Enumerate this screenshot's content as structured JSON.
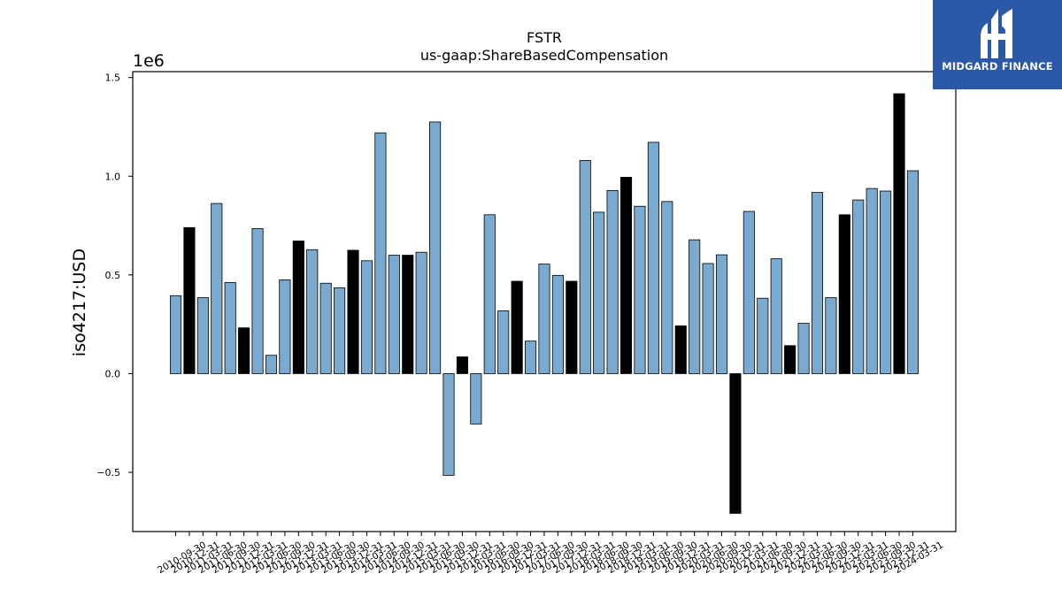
{
  "chart_data": {
    "type": "bar",
    "title": "FSTR",
    "subtitle": "us-gaap:ShareBasedCompensation",
    "ylabel": "iso4217:USD",
    "xlabel": "",
    "y_scale_label": "1e6",
    "ylim": [
      -0.8,
      1.53
    ],
    "yticks": [
      -0.5,
      0.0,
      0.5,
      1.0,
      1.5
    ],
    "ytick_labels": [
      "−0.5",
      "0.0",
      "0.5",
      "1.0",
      "1.5"
    ],
    "grid": false,
    "colors": {
      "q": "#7aaad0",
      "fy": "#000000"
    },
    "categories": [
      "2010-09-30",
      "2010-12-31",
      "2011-03-31",
      "2011-06-30",
      "2011-09-30",
      "2011-12-31",
      "2012-03-31",
      "2012-06-30",
      "2012-09-30",
      "2012-12-31",
      "2013-03-31",
      "2013-06-30",
      "2013-09-30",
      "2013-12-31",
      "2014-03-31",
      "2014-06-30",
      "2014-09-30",
      "2014-12-31",
      "2015-03-31",
      "2015-06-30",
      "2015-09-30",
      "2015-12-31",
      "2016-03-31",
      "2016-06-30",
      "2016-09-30",
      "2016-12-31",
      "2017-03-31",
      "2017-06-30",
      "2017-09-30",
      "2017-12-31",
      "2018-03-31",
      "2018-06-30",
      "2018-09-30",
      "2018-12-31",
      "2019-03-31",
      "2019-06-30",
      "2019-09-30",
      "2019-12-31",
      "2020-03-31",
      "2020-06-30",
      "2020-09-30",
      "2020-12-31",
      "2021-03-31",
      "2021-06-30",
      "2021-09-30",
      "2021-12-31",
      "2022-03-31",
      "2022-06-30",
      "2022-09-30",
      "2022-12-31",
      "2023-03-31",
      "2023-06-30",
      "2023-09-30",
      "2023-12-31",
      "2024-03-31"
    ],
    "values": [
      0.395,
      0.74,
      0.385,
      0.862,
      0.462,
      0.232,
      0.735,
      0.093,
      0.475,
      0.672,
      0.628,
      0.458,
      0.435,
      0.625,
      0.572,
      1.22,
      0.6,
      0.6,
      0.615,
      1.275,
      -0.515,
      0.085,
      -0.255,
      0.805,
      0.318,
      0.468,
      0.165,
      0.555,
      0.498,
      0.468,
      1.08,
      0.818,
      0.928,
      0.995,
      0.848,
      1.172,
      0.872,
      0.242,
      0.678,
      0.558,
      0.602,
      -0.708,
      0.822,
      0.382,
      0.582,
      0.142,
      0.255,
      0.918,
      0.385,
      0.805,
      0.88,
      0.938,
      0.925,
      1.418,
      1.028
    ],
    "bar_kinds": [
      "q",
      "fy",
      "q",
      "q",
      "q",
      "fy",
      "q",
      "q",
      "q",
      "fy",
      "q",
      "q",
      "q",
      "fy",
      "q",
      "q",
      "q",
      "fy",
      "q",
      "q",
      "q",
      "fy",
      "q",
      "q",
      "q",
      "fy",
      "q",
      "q",
      "q",
      "fy",
      "q",
      "q",
      "q",
      "fy",
      "q",
      "q",
      "q",
      "fy",
      "q",
      "q",
      "q",
      "fy",
      "q",
      "q",
      "q",
      "fy",
      "q",
      "q",
      "q",
      "fy",
      "q",
      "q",
      "q",
      "fy",
      "q"
    ]
  },
  "logo": {
    "text": "MIDGARD FINANCE"
  }
}
